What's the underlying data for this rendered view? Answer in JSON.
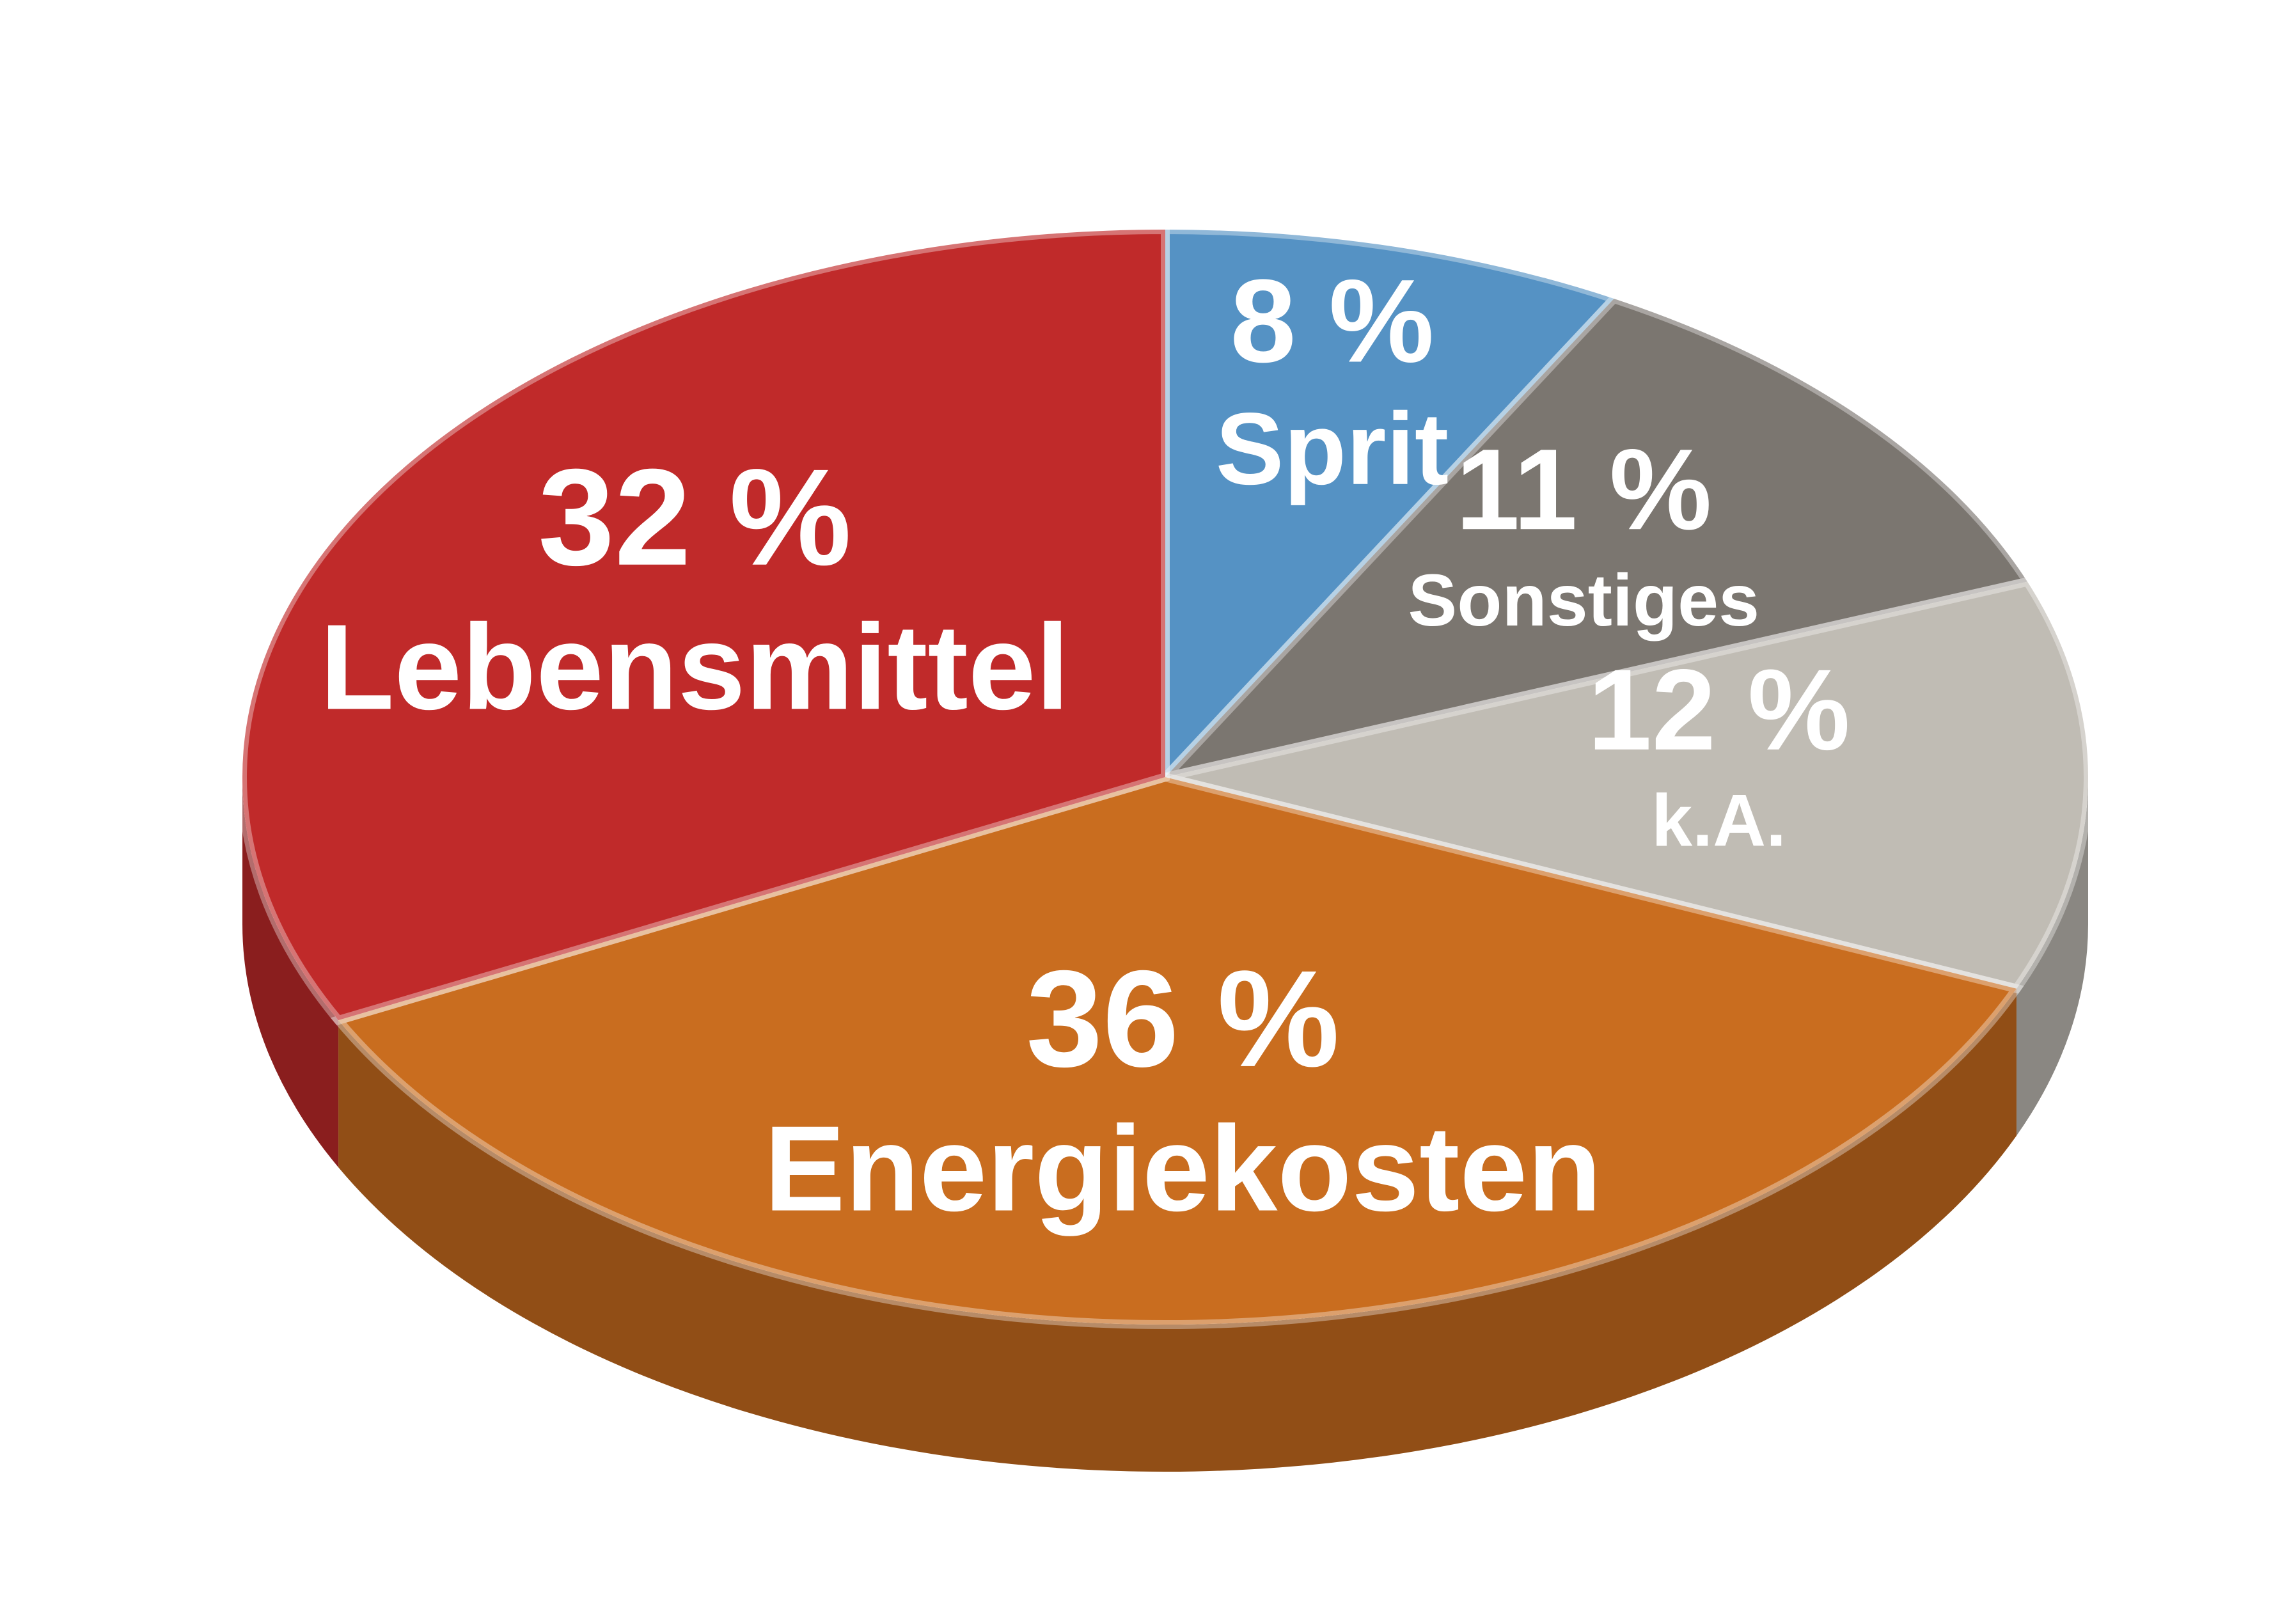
{
  "chart_data": {
    "type": "pie",
    "categories": [
      "Sprit",
      "Sonstiges",
      "k.A.",
      "Energiekosten",
      "Lebensmittel"
    ],
    "values": [
      8,
      11,
      12,
      36,
      32
    ],
    "value_labels": [
      "8 %",
      "11 %",
      "12 %",
      "36 %",
      "32 %"
    ],
    "colors": [
      "#5592c4",
      "#7b7670",
      "#c0bcb4",
      "#c96d1f",
      "#c02a2a"
    ]
  }
}
